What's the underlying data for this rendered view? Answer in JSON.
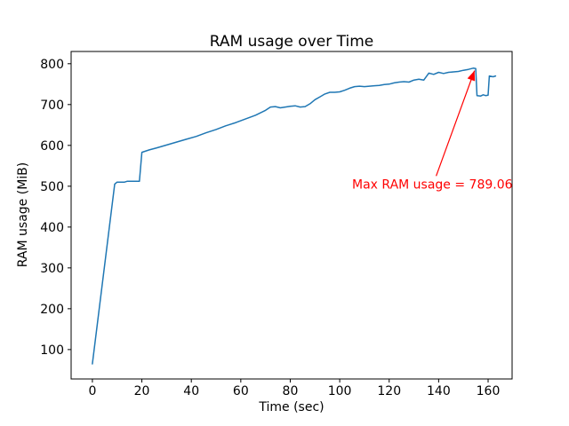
{
  "chart_data": {
    "type": "line",
    "title": "RAM usage over Time",
    "xlabel": "Time (sec)",
    "ylabel": "RAM usage (MiB)",
    "xlim": [
      -8.6,
      169.7
    ],
    "ylim": [
      28,
      830
    ],
    "xticks": [
      0,
      20,
      40,
      60,
      80,
      100,
      120,
      140,
      160
    ],
    "yticks": [
      100,
      200,
      300,
      400,
      500,
      600,
      700,
      800
    ],
    "grid": false,
    "legend": "none",
    "line_color": "#1f77b4",
    "series": [
      {
        "name": "RAM usage",
        "x": [
          0,
          9,
          10,
          13,
          14,
          19,
          20,
          23,
          26,
          30,
          34,
          38,
          42,
          46,
          50,
          54,
          58,
          62,
          66,
          70,
          72,
          74,
          76,
          78,
          80,
          82,
          84,
          86,
          88,
          90,
          92,
          94,
          96,
          98,
          100,
          102,
          104,
          106,
          108,
          110,
          112,
          114,
          116,
          118,
          120,
          122,
          124,
          126,
          128,
          130,
          132,
          134,
          136,
          138,
          140,
          142,
          144,
          146,
          148,
          150,
          152,
          154,
          155,
          155.5,
          157,
          158,
          159,
          160,
          160.5,
          162,
          163
        ],
        "y": [
          65,
          505,
          510,
          510,
          512,
          512,
          583,
          589,
          594,
          601,
          608,
          615,
          622,
          631,
          639,
          648,
          656,
          665,
          674,
          686,
          694,
          695,
          692,
          694,
          696,
          697,
          694,
          695,
          702,
          712,
          719,
          726,
          730,
          730,
          731,
          735,
          740,
          744,
          745,
          744,
          745,
          746,
          747,
          749,
          750,
          753,
          755,
          756,
          755,
          760,
          762,
          760,
          777,
          774,
          779,
          776,
          779,
          780,
          781,
          784,
          786,
          789.06,
          788,
          722,
          721,
          724,
          722,
          723,
          770,
          768,
          770
        ]
      }
    ],
    "annotation": {
      "text": "Max RAM usage = 789.06",
      "color": "#ff0000",
      "max_value": 789.06,
      "text_xy": [
        105,
        505
      ],
      "arrow_from": [
        139,
        525
      ],
      "arrow_to": [
        154.5,
        783
      ]
    }
  }
}
